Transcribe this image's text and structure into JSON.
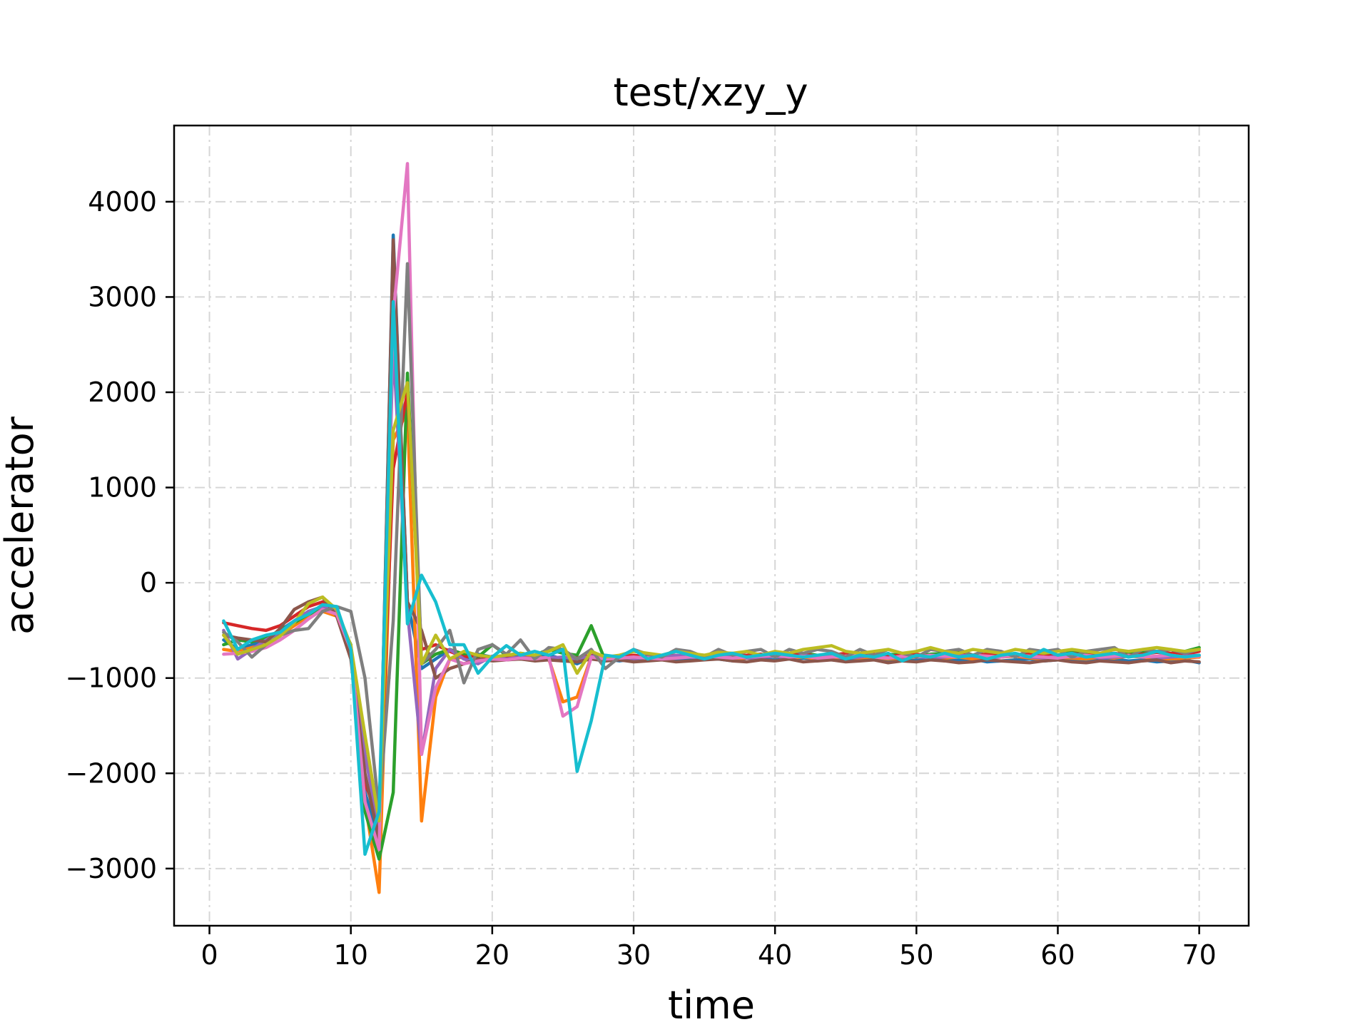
{
  "chart_data": {
    "type": "line",
    "title": "test/xzy_y",
    "xlabel": "time",
    "ylabel": "accelerator",
    "xlim": [
      -2.5,
      73.5
    ],
    "ylim": [
      -3600,
      4800
    ],
    "xticks": [
      0,
      10,
      20,
      30,
      40,
      50,
      60,
      70
    ],
    "yticks": [
      -3000,
      -2000,
      -1000,
      0,
      1000,
      2000,
      3000,
      4000
    ],
    "ytick_labels": [
      "−3000",
      "−2000",
      "−1000",
      "0",
      "1000",
      "2000",
      "3000",
      "4000"
    ],
    "grid": true,
    "legend": "none",
    "x": [
      1,
      2,
      3,
      4,
      5,
      6,
      7,
      8,
      9,
      10,
      11,
      12,
      13,
      14,
      15,
      16,
      17,
      18,
      19,
      20,
      21,
      22,
      23,
      24,
      25,
      26,
      27,
      28,
      29,
      30,
      31,
      32,
      33,
      34,
      35,
      36,
      37,
      38,
      39,
      40,
      41,
      42,
      43,
      44,
      45,
      46,
      47,
      48,
      49,
      50,
      51,
      52,
      53,
      54,
      55,
      56,
      57,
      58,
      59,
      60,
      61,
      62,
      63,
      64,
      65,
      66,
      67,
      68,
      69,
      70
    ],
    "series": [
      {
        "color": "#1f77b4",
        "values": [
          -600,
          -700,
          -650,
          -600,
          -500,
          -400,
          -300,
          -250,
          -300,
          -700,
          -2200,
          -2700,
          3650,
          -200,
          -900,
          -800,
          -700,
          -800,
          -750,
          -780,
          -760,
          -780,
          -770,
          -760,
          -800,
          -850,
          -780,
          -800,
          -820,
          -800,
          -790,
          -800,
          -810,
          -790,
          -800,
          -800,
          -820,
          -790,
          -800,
          -810,
          -800,
          -790,
          -800,
          -810,
          -820,
          -790,
          -800,
          -810,
          -820,
          -800,
          -790,
          -820,
          -810,
          -800,
          -830,
          -820,
          -810,
          -800,
          -820,
          -810,
          -800,
          -820,
          -810,
          -800,
          -820,
          -810,
          -830,
          -820,
          -810,
          -840
        ]
      },
      {
        "color": "#ff7f0e",
        "values": [
          -700,
          -720,
          -680,
          -650,
          -550,
          -450,
          -350,
          -300,
          -350,
          -700,
          -2300,
          -3250,
          1500,
          1800,
          -2500,
          -1200,
          -800,
          -780,
          -760,
          -790,
          -780,
          -790,
          -770,
          -800,
          -1250,
          -1200,
          -780,
          -800,
          -790,
          -770,
          -790,
          -800,
          -780,
          -770,
          -790,
          -780,
          -800,
          -790,
          -780,
          -770,
          -790,
          -780,
          -800,
          -790,
          -780,
          -790,
          -780,
          -800,
          -790,
          -780,
          -770,
          -790,
          -780,
          -800,
          -790,
          -780,
          -770,
          -790,
          -800,
          -780,
          -790,
          -800,
          -780,
          -790,
          -770,
          -780,
          -790,
          -800,
          -790,
          -780
        ]
      },
      {
        "color": "#2ca02c",
        "values": [
          -650,
          -600,
          -620,
          -580,
          -500,
          -420,
          -330,
          -280,
          -320,
          -650,
          -2400,
          -2900,
          -2200,
          2200,
          -850,
          -750,
          -700,
          -750,
          -780,
          -650,
          -760,
          -740,
          -760,
          -700,
          -740,
          -760,
          -450,
          -820,
          -790,
          -770,
          -780,
          -760,
          -770,
          -750,
          -760,
          -770,
          -780,
          -760,
          -750,
          -770,
          -760,
          -740,
          -760,
          -770,
          -750,
          -760,
          -770,
          -750,
          -760,
          -770,
          -750,
          -740,
          -720,
          -760,
          -750,
          -740,
          -760,
          -750,
          -740,
          -760,
          -720,
          -740,
          -760,
          -750,
          -740,
          -720,
          -730,
          -740,
          -720,
          -680
        ]
      },
      {
        "color": "#d62728",
        "values": [
          -420,
          -450,
          -480,
          -500,
          -450,
          -350,
          -250,
          -200,
          -300,
          -700,
          -2100,
          -2500,
          1200,
          2000,
          -700,
          -650,
          -720,
          -780,
          -760,
          -800,
          -790,
          -800,
          -790,
          -800,
          -780,
          -790,
          -760,
          -780,
          -770,
          -760,
          -780,
          -770,
          -760,
          -780,
          -770,
          -760,
          -770,
          -760,
          -750,
          -770,
          -760,
          -750,
          -770,
          -760,
          -740,
          -760,
          -750,
          -770,
          -760,
          -750,
          -770,
          -760,
          -740,
          -760,
          -750,
          -740,
          -760,
          -750,
          -770,
          -760,
          -740,
          -760,
          -750,
          -740,
          -760,
          -750,
          -730,
          -740,
          -750,
          -720
        ]
      },
      {
        "color": "#9467bd",
        "values": [
          -500,
          -800,
          -700,
          -600,
          -520,
          -400,
          -300,
          -250,
          -300,
          -680,
          -1800,
          -2600,
          2500,
          -300,
          -1800,
          -900,
          -700,
          -800,
          -850,
          -770,
          -800,
          -780,
          -800,
          -790,
          -780,
          -800,
          -770,
          -790,
          -780,
          -800,
          -780,
          -790,
          -760,
          -780,
          -790,
          -770,
          -760,
          -790,
          -780,
          -770,
          -790,
          -760,
          -780,
          -770,
          -790,
          -780,
          -760,
          -790,
          -780,
          -770,
          -790,
          -780,
          -760,
          -770,
          -790,
          -780,
          -760,
          -780,
          -790,
          -770,
          -780,
          -760,
          -790,
          -780,
          -770,
          -760,
          -790,
          -780,
          -770,
          -760
        ]
      },
      {
        "color": "#8c564b",
        "values": [
          -550,
          -580,
          -600,
          -620,
          -480,
          -280,
          -200,
          -150,
          -350,
          -800,
          -2000,
          -2700,
          3600,
          -200,
          -500,
          -1000,
          -900,
          -850,
          -800,
          -820,
          -810,
          -800,
          -820,
          -810,
          -820,
          -830,
          -800,
          -820,
          -810,
          -830,
          -820,
          -810,
          -830,
          -820,
          -810,
          -800,
          -820,
          -830,
          -810,
          -820,
          -800,
          -830,
          -820,
          -810,
          -830,
          -820,
          -810,
          -840,
          -820,
          -830,
          -810,
          -820,
          -840,
          -830,
          -810,
          -820,
          -830,
          -840,
          -820,
          -810,
          -830,
          -840,
          -820,
          -830,
          -840,
          -820,
          -810,
          -840,
          -820,
          -830
        ]
      },
      {
        "color": "#e377c2",
        "values": [
          -750,
          -740,
          -720,
          -680,
          -600,
          -500,
          -380,
          -280,
          -330,
          -700,
          -2300,
          -2800,
          2800,
          4400,
          -1800,
          -1100,
          -800,
          -850,
          -820,
          -800,
          -810,
          -790,
          -800,
          -780,
          -1400,
          -1300,
          -780,
          -800,
          -790,
          -780,
          -790,
          -800,
          -790,
          -780,
          -770,
          -780,
          -790,
          -780,
          -770,
          -760,
          -780,
          -770,
          -790,
          -780,
          -770,
          -760,
          -780,
          -790,
          -770,
          -780,
          -760,
          -770,
          -780,
          -760,
          -770,
          -780,
          -760,
          -770,
          -780,
          -790,
          -770,
          -760,
          -780,
          -770,
          -760,
          -780,
          -770,
          -760,
          -780,
          -770
        ]
      },
      {
        "color": "#7f7f7f",
        "values": [
          -520,
          -620,
          -780,
          -650,
          -550,
          -500,
          -480,
          -300,
          -250,
          -300,
          -1000,
          -2400,
          -400,
          3350,
          -850,
          -700,
          -500,
          -1050,
          -700,
          -650,
          -750,
          -600,
          -800,
          -680,
          -700,
          -800,
          -700,
          -900,
          -780,
          -700,
          -750,
          -780,
          -700,
          -720,
          -780,
          -700,
          -760,
          -720,
          -700,
          -780,
          -700,
          -740,
          -700,
          -720,
          -780,
          -700,
          -760,
          -700,
          -740,
          -780,
          -700,
          -720,
          -700,
          -760,
          -700,
          -720,
          -780,
          -700,
          -720,
          -700,
          -780,
          -720,
          -700,
          -680,
          -780,
          -700,
          -720,
          -700,
          -740,
          -700
        ]
      },
      {
        "color": "#bcbd22",
        "values": [
          -550,
          -750,
          -700,
          -650,
          -560,
          -420,
          -220,
          -150,
          -280,
          -660,
          -1600,
          -2500,
          1600,
          2100,
          -850,
          -550,
          -800,
          -720,
          -760,
          -780,
          -760,
          -740,
          -760,
          -720,
          -650,
          -950,
          -720,
          -780,
          -760,
          -720,
          -740,
          -760,
          -720,
          -740,
          -760,
          -730,
          -740,
          -720,
          -760,
          -720,
          -740,
          -700,
          -680,
          -660,
          -720,
          -740,
          -720,
          -700,
          -740,
          -720,
          -680,
          -720,
          -740,
          -700,
          -720,
          -740,
          -700,
          -720,
          -740,
          -720,
          -700,
          -720,
          -740,
          -700,
          -720,
          -700,
          -680,
          -700,
          -720,
          -700
        ]
      },
      {
        "color": "#17becf",
        "values": [
          -400,
          -700,
          -600,
          -550,
          -520,
          -400,
          -330,
          -230,
          -250,
          -700,
          -2850,
          -2400,
          2950,
          -430,
          80,
          -200,
          -650,
          -650,
          -950,
          -780,
          -660,
          -760,
          -720,
          -760,
          -700,
          -1980,
          -1450,
          -760,
          -780,
          -700,
          -800,
          -760,
          -720,
          -760,
          -800,
          -760,
          -740,
          -780,
          -760,
          -740,
          -760,
          -780,
          -760,
          -740,
          -800,
          -760,
          -780,
          -740,
          -820,
          -760,
          -780,
          -740,
          -780,
          -760,
          -800,
          -760,
          -740,
          -780,
          -700,
          -760,
          -740,
          -780,
          -760,
          -740,
          -780,
          -760,
          -720,
          -760,
          -780,
          -760
        ]
      }
    ]
  }
}
